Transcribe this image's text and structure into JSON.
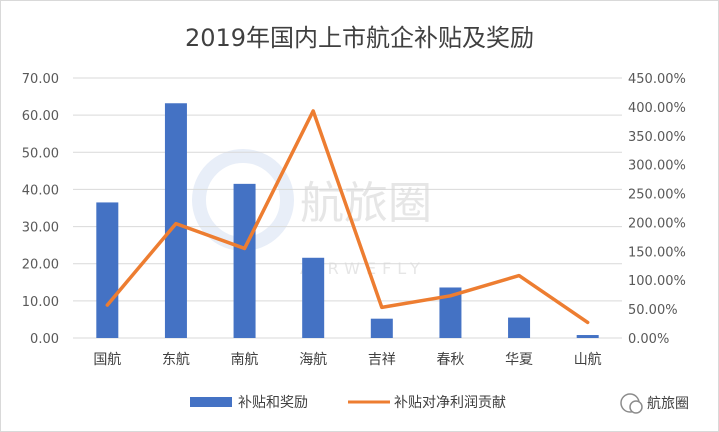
{
  "title": "2019年国内上市航企补贴及奖励",
  "watermark": {
    "text": "航旅圈",
    "sub": "AIRWEFLY"
  },
  "brand": {
    "text": "航旅圈"
  },
  "colors": {
    "bar": "#4472c4",
    "line": "#ed7d31",
    "grid": "#d9d9d9"
  },
  "chart_data": {
    "type": "bar",
    "categories": [
      "国航",
      "东航",
      "南航",
      "海航",
      "吉祥",
      "春秋",
      "华夏",
      "山航"
    ],
    "series": [
      {
        "name": "补贴和奖励",
        "type": "bar",
        "axis": "left",
        "values": [
          36.5,
          63.2,
          41.5,
          21.6,
          5.2,
          13.6,
          5.5,
          0.8
        ]
      },
      {
        "name": "补贴对净利润贡献",
        "type": "line",
        "axis": "right",
        "values": [
          57,
          198,
          155,
          393,
          53,
          73,
          108,
          27
        ]
      }
    ],
    "ylim_left": [
      0,
      70
    ],
    "yticks_left": [
      "0.00",
      "10.00",
      "20.00",
      "30.00",
      "40.00",
      "50.00",
      "60.00",
      "70.00"
    ],
    "ylim_right": [
      0,
      450
    ],
    "yticks_right": [
      "0.00%",
      "50.00%",
      "100.00%",
      "150.00%",
      "200.00%",
      "250.00%",
      "300.00%",
      "350.00%",
      "400.00%",
      "450.00%"
    ],
    "grid": true,
    "legend": "bottom"
  }
}
